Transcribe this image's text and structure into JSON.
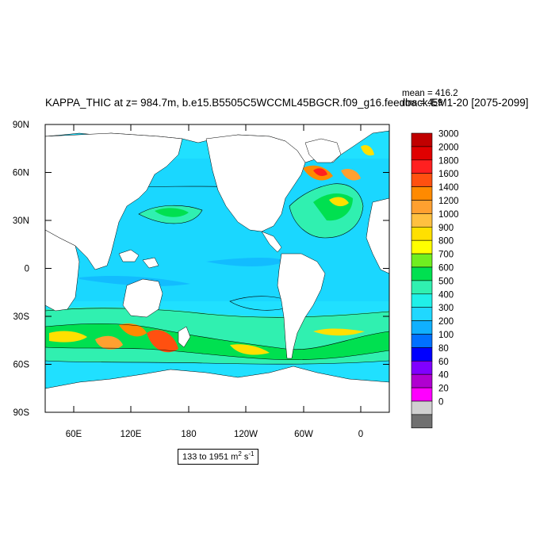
{
  "title": "KAPPA_THIC at z= 984.7m, b.e15.B5505C5WCCML45BGCR.f09_g16.feedback.EM1-20 [2075-2099]",
  "stats": {
    "mean": "mean = 416.2",
    "rms": "rms = 459"
  },
  "range": {
    "text": "133 to 1951 m",
    "unit_sup": "2",
    "unit_tail": " s",
    "unit_sup2": "-1"
  },
  "map": {
    "lat_labels": [
      "90N",
      "60N",
      "30N",
      "0",
      "30S",
      "60S",
      "90S"
    ],
    "lon_labels": [
      "60E",
      "120E",
      "180",
      "120W",
      "60W",
      "0"
    ],
    "land_color": "#ffffff",
    "projection": "cylindrical equidistant"
  },
  "colorbar": {
    "levels": [
      "3000",
      "2000",
      "1800",
      "1600",
      "1400",
      "1200",
      "1000",
      "900",
      "800",
      "700",
      "600",
      "500",
      "400",
      "300",
      "200",
      "100",
      "80",
      "60",
      "40",
      "20",
      "0"
    ],
    "colors": [
      "#c00000",
      "#e00000",
      "#ff2020",
      "#ff5010",
      "#ff8a00",
      "#ffa030",
      "#ffc040",
      "#ffe000",
      "#ffff00",
      "#70ee20",
      "#00e050",
      "#30f0b0",
      "#20f0e8",
      "#20d8ff",
      "#10b0ff",
      "#0070ff",
      "#0000ff",
      "#8000ff",
      "#b000d0",
      "#ff00ff",
      "#d0d0d0",
      "#707070"
    ]
  }
}
